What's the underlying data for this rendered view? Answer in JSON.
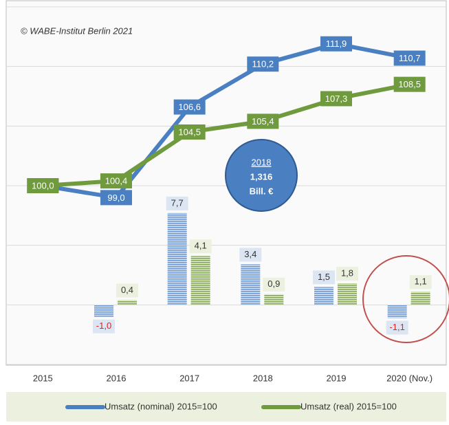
{
  "chart_data": {
    "type": "line",
    "annotations": [
      "© WABE-Institut Berlin 2021",
      "2018",
      "1,316",
      "Bill. €"
    ],
    "categories": [
      "2015",
      "2016",
      "2017",
      "2018",
      "2019",
      "2020 (Nov.)"
    ],
    "ylim": [
      85,
      115
    ],
    "yticks": [
      85,
      90,
      95,
      100,
      105,
      110,
      115
    ],
    "y2lim": [
      -5,
      25
    ],
    "grid": true,
    "series": [
      {
        "name": "Umsatz (nominal) 2015=100",
        "type": "line",
        "axis": "y",
        "color": "#4a7fc1",
        "values": [
          100.0,
          99.0,
          106.6,
          110.2,
          111.9,
          110.7
        ],
        "value_labels": [
          "100,0",
          "99,0",
          "106,6",
          "110,2",
          "111,9",
          "110,7"
        ]
      },
      {
        "name": "Umsatz (real) 2015=100",
        "type": "line",
        "axis": "y",
        "color": "#6f9a3d",
        "values": [
          100.0,
          100.4,
          104.5,
          105.4,
          107.3,
          108.5
        ],
        "value_labels": [
          "100,0",
          "100,4",
          "104,5",
          "105,4",
          "107,3",
          "108,5"
        ]
      },
      {
        "type": "bar",
        "axis": "y2",
        "color": "#7ea6dc",
        "values": [
          null,
          -1.0,
          7.7,
          3.4,
          1.5,
          -1.1
        ],
        "value_labels": [
          null,
          "-1,0",
          "7,7",
          "3,4",
          "1,5",
          "-1,1"
        ]
      },
      {
        "type": "bar",
        "axis": "y2",
        "color": "#93b562",
        "values": [
          null,
          0.4,
          4.1,
          0.9,
          1.8,
          1.1
        ],
        "value_labels": [
          null,
          "0,4",
          "4,1",
          "0,9",
          "1,8",
          "1,1"
        ]
      }
    ]
  }
}
